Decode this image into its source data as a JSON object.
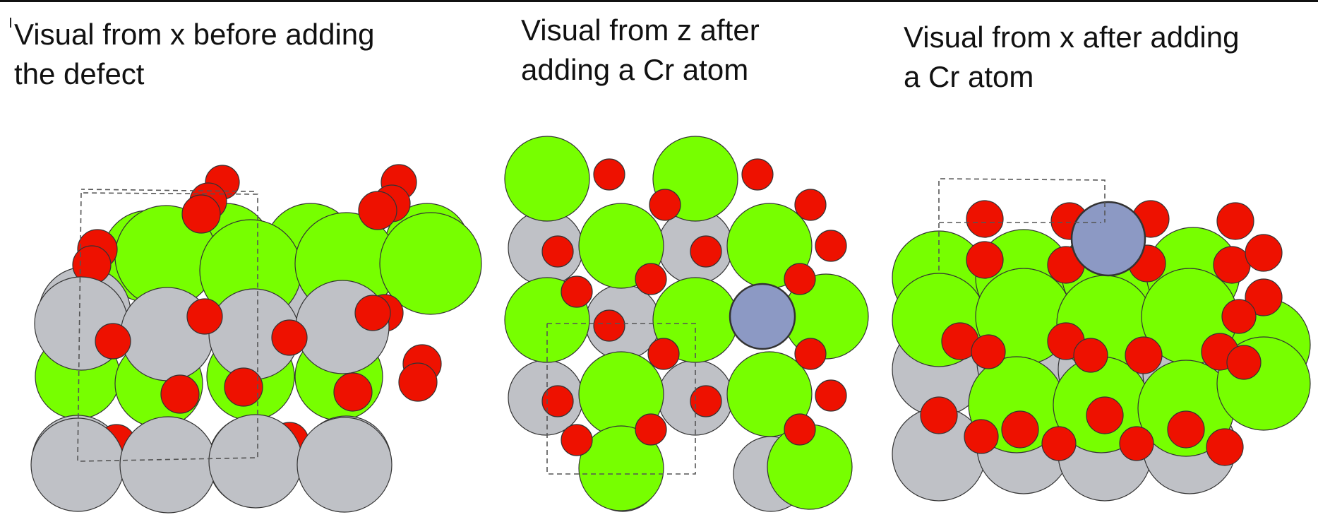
{
  "panels": [
    {
      "caption": "Visual from x before adding the defect",
      "view_axis": "x",
      "stage": "before"
    },
    {
      "caption": "Visual from z after adding a Cr atom",
      "view_axis": "z",
      "stage": "after"
    },
    {
      "caption": "Visual from x after adding a Cr atom",
      "view_axis": "x",
      "stage": "after"
    }
  ],
  "colors": {
    "green_atom": "#77ff00",
    "grey_atom": "#bfc1c6",
    "red_atom": "#ee1100",
    "cr_atom": "#8c99c4",
    "outline": "#333333",
    "background": "#ffffff"
  }
}
